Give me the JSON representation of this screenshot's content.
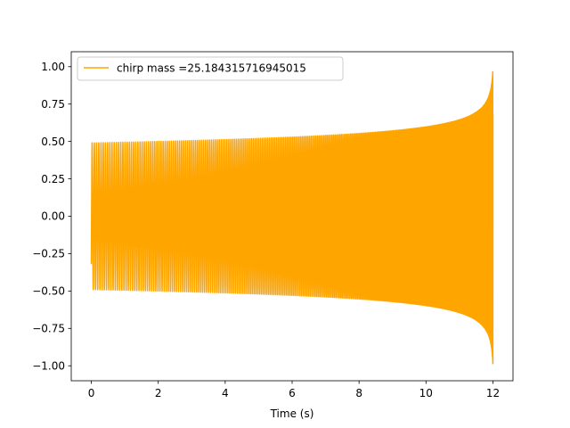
{
  "chart_data": {
    "type": "line",
    "title": "",
    "xlabel": "Time (s)",
    "ylabel": "",
    "xlim": [
      -0.6,
      12.6
    ],
    "ylim": [
      -1.1,
      1.1
    ],
    "xticks": [
      0,
      2,
      4,
      6,
      8,
      10,
      12
    ],
    "xtick_labels": [
      "0",
      "2",
      "4",
      "6",
      "8",
      "10",
      "12"
    ],
    "yticks": [
      -1.0,
      -0.75,
      -0.5,
      -0.25,
      0.0,
      0.25,
      0.5,
      0.75,
      1.0
    ],
    "ytick_labels": [
      "−1.00",
      "−0.75",
      "−0.50",
      "−0.25",
      "0.00",
      "0.25",
      "0.50",
      "0.75",
      "1.00"
    ],
    "grid": false,
    "legend_position": "top-left",
    "series": [
      {
        "name": "chirp mass =25.184315716945015",
        "color": "#FFA500",
        "signal": "chirp",
        "t_start": 0.0,
        "t_end": 12.0,
        "amplitude_start": 0.49,
        "amplitude_end": 1.0,
        "value_at_start": -0.32,
        "value_at_end": 0.68
      }
    ]
  }
}
